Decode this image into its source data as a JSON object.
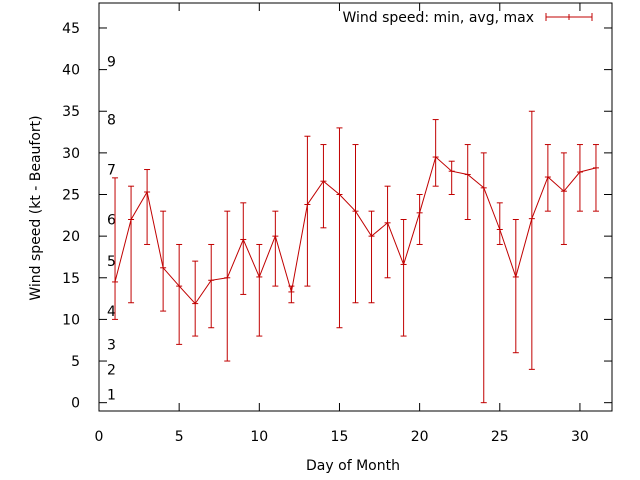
{
  "chart_data": {
    "type": "line",
    "title": "",
    "xlabel": "Day of Month",
    "ylabel": "Wind speed (kt - Beaufort)",
    "xlim": [
      0,
      32
    ],
    "ylim": [
      -1,
      48
    ],
    "x_ticks": [
      0,
      5,
      10,
      15,
      20,
      25,
      30
    ],
    "y_ticks": [
      0,
      5,
      10,
      15,
      20,
      25,
      30,
      35,
      40,
      45
    ],
    "beaufort_labels": [
      {
        "label": "1",
        "y": 1
      },
      {
        "label": "2",
        "y": 4
      },
      {
        "label": "3",
        "y": 7
      },
      {
        "label": "4",
        "y": 11
      },
      {
        "label": "5",
        "y": 17
      },
      {
        "label": "6",
        "y": 22
      },
      {
        "label": "7",
        "y": 28
      },
      {
        "label": "8",
        "y": 34
      },
      {
        "label": "9",
        "y": 41
      }
    ],
    "legend_position": "top-right",
    "grid": false,
    "color": "#c00000",
    "series": [
      {
        "name": "Wind speed: min, avg, max",
        "x": [
          1,
          2,
          3,
          4,
          5,
          6,
          7,
          8,
          9,
          10,
          11,
          12,
          13,
          14,
          15,
          16,
          17,
          18,
          19,
          20,
          21,
          22,
          23,
          24,
          25,
          26,
          27,
          28,
          29,
          30,
          31
        ],
        "avg": [
          14.5,
          22,
          25.3,
          16.2,
          14,
          11.9,
          14.7,
          15,
          19.6,
          15.1,
          20,
          13.3,
          23.8,
          26.6,
          25,
          23,
          20,
          21.6,
          16.6,
          22.8,
          29.5,
          27.8,
          27.4,
          25.8,
          20.8,
          15.1,
          22.1,
          27.1,
          25.4,
          27.7,
          28.2
        ],
        "min": [
          10,
          12,
          19,
          11,
          7,
          8,
          9,
          5,
          13,
          8,
          14,
          12,
          14,
          21,
          9,
          12,
          12,
          15,
          8,
          19,
          26,
          25,
          22,
          0,
          19,
          6,
          4,
          23,
          19,
          23,
          23
        ],
        "max": [
          27,
          26,
          28,
          23,
          19,
          17,
          19,
          23,
          24,
          19,
          23,
          14,
          32,
          31,
          33,
          31,
          23,
          26,
          22,
          25,
          34,
          29,
          31,
          30,
          24,
          22,
          35,
          31,
          30,
          31,
          31
        ]
      }
    ]
  }
}
